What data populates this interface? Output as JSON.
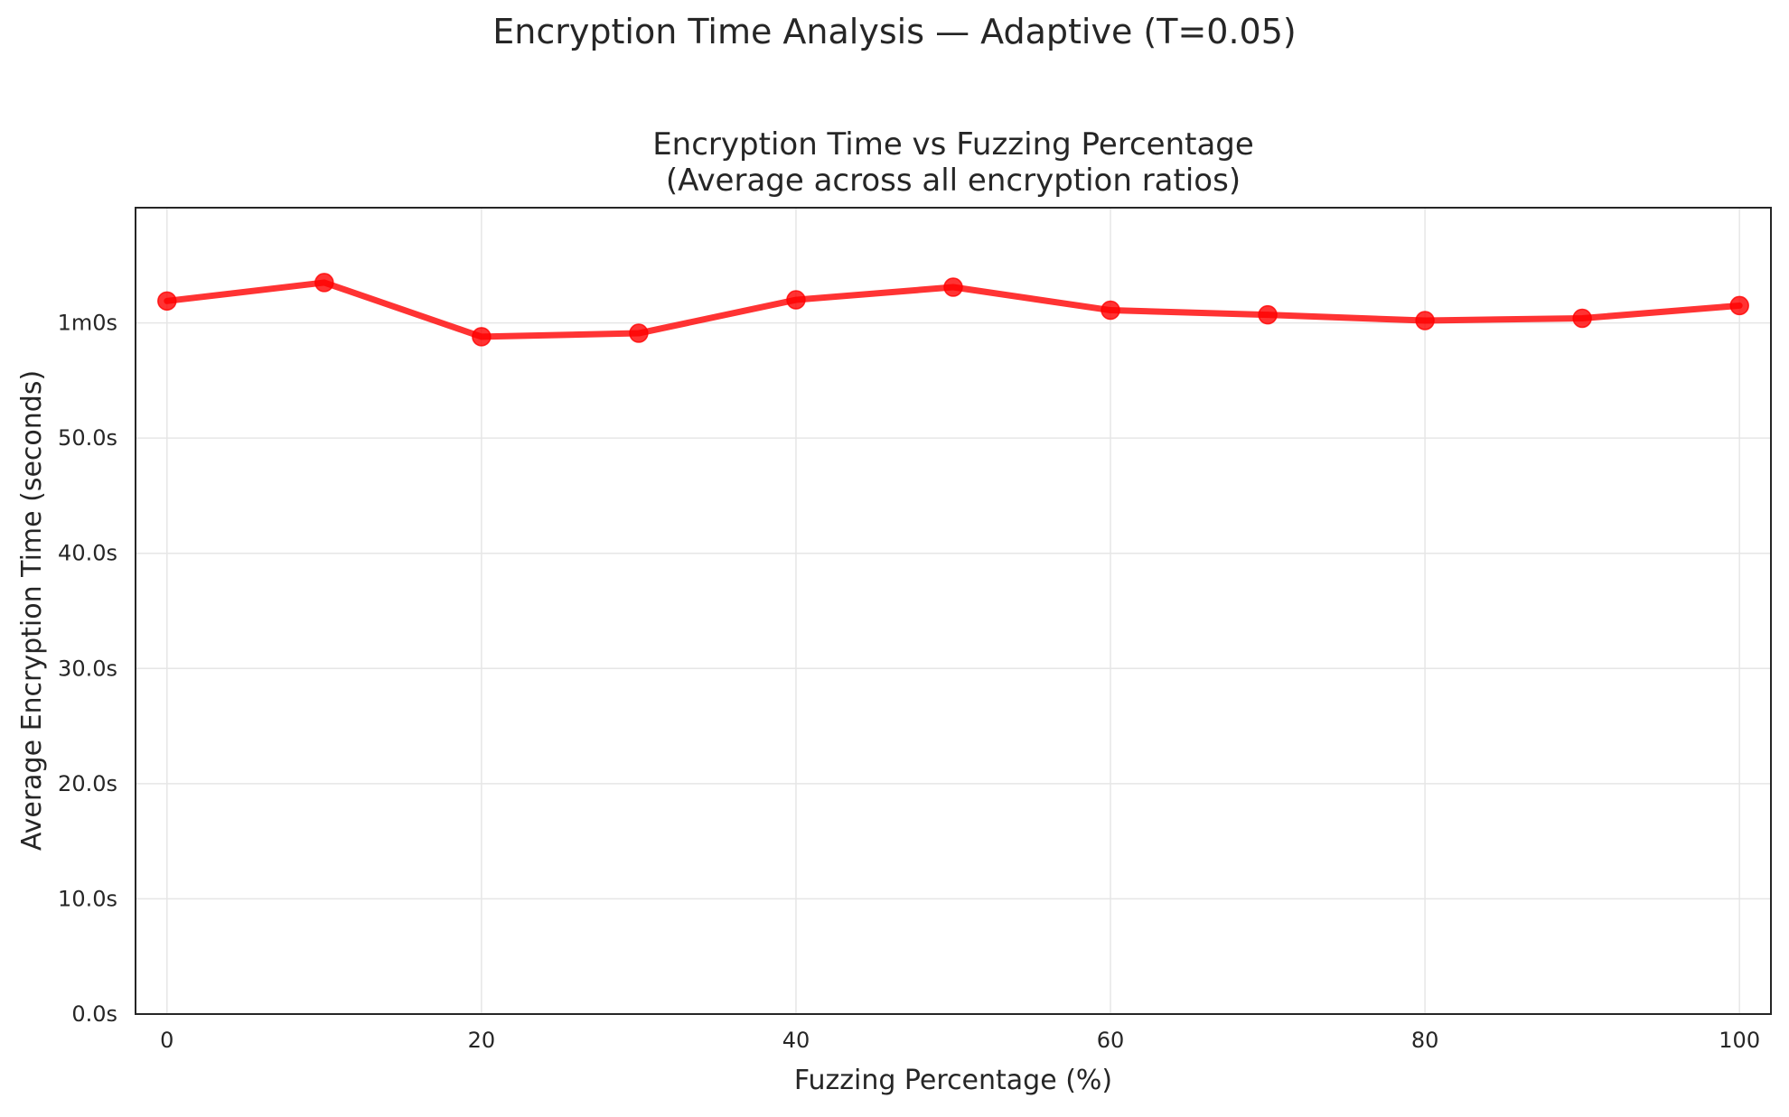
{
  "figure": {
    "suptitle": "Encryption Time Analysis — Adaptive (T=0.05)"
  },
  "chart_data": {
    "type": "line",
    "title_line1": "Encryption Time vs Fuzzing Percentage",
    "title_line2": "(Average across all encryption ratios)",
    "xlabel": "Fuzzing Percentage (%)",
    "ylabel": "Average Encryption Time (seconds)",
    "xlim": [
      -2,
      102
    ],
    "ylim": [
      0,
      70
    ],
    "grid": true,
    "x_ticks": [
      0,
      20,
      40,
      60,
      80,
      100
    ],
    "x_tick_labels": [
      "0",
      "20",
      "40",
      "60",
      "80",
      "100"
    ],
    "y_ticks": [
      0,
      10,
      20,
      30,
      40,
      50,
      60
    ],
    "y_tick_labels": [
      "0.0s",
      "10.0s",
      "20.0s",
      "30.0s",
      "40.0s",
      "50.0s",
      "1m0s"
    ],
    "series": [
      {
        "name": "Average encryption time",
        "color": "#ff0000",
        "x": [
          0,
          10,
          20,
          30,
          40,
          50,
          60,
          70,
          80,
          90,
          100
        ],
        "values": [
          61.9,
          63.5,
          58.8,
          59.1,
          62.0,
          63.1,
          61.1,
          60.7,
          60.2,
          60.4,
          61.5
        ]
      }
    ]
  }
}
